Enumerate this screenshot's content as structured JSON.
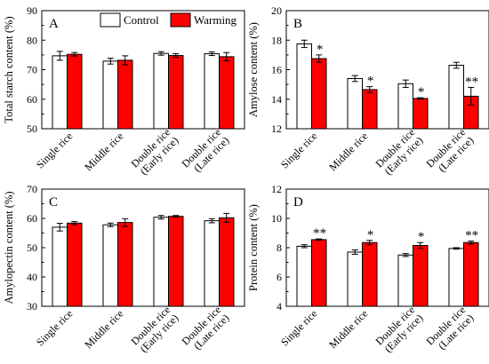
{
  "legend": {
    "entries": [
      {
        "name": "Control",
        "color": "#ffffff"
      },
      {
        "name": "Warming",
        "color": "#ff0000"
      }
    ],
    "placement": "top, inside panel A"
  },
  "colors": {
    "control_fill": "#ffffff",
    "warming_fill": "#ff0000",
    "stroke": "#000000"
  },
  "chart_data": [
    {
      "type": "bar",
      "panel": "A",
      "ylabel": "Total starch content (%)",
      "ylim": [
        50,
        90
      ],
      "yticks": [
        50,
        60,
        70,
        80,
        90
      ],
      "categories": [
        "Single rice",
        "Middle rice",
        "Double rice\n(Early rice)",
        "Double rice\n(Late rice)"
      ],
      "series": [
        {
          "name": "Control",
          "values": [
            74.7,
            72.9,
            75.5,
            75.4
          ],
          "errors": [
            1.5,
            1.0,
            0.6,
            0.6
          ]
        },
        {
          "name": "Warming",
          "values": [
            75.2,
            73.2,
            74.8,
            74.4
          ],
          "errors": [
            0.6,
            1.5,
            0.6,
            1.4
          ]
        }
      ],
      "significance": [
        "",
        "",
        "",
        ""
      ]
    },
    {
      "type": "bar",
      "panel": "B",
      "ylabel": "Amylose content (%)",
      "ylim": [
        12,
        20
      ],
      "yticks": [
        12,
        14,
        16,
        18,
        20
      ],
      "categories": [
        "Single rice",
        "Middle rice",
        "Double rice\n(Early rice)",
        "Double rice\n(Late rice)"
      ],
      "series": [
        {
          "name": "Control",
          "values": [
            17.75,
            15.4,
            15.05,
            16.3
          ],
          "errors": [
            0.25,
            0.2,
            0.25,
            0.2
          ]
        },
        {
          "name": "Warming",
          "values": [
            16.75,
            14.65,
            14.05,
            14.2
          ],
          "errors": [
            0.25,
            0.2,
            0.05,
            0.6
          ]
        }
      ],
      "significance": [
        "*",
        "*",
        "*",
        "**"
      ]
    },
    {
      "type": "bar",
      "panel": "C",
      "ylabel": "Amylopectin content (%)",
      "ylim": [
        30,
        70
      ],
      "yticks": [
        30,
        40,
        50,
        60,
        70
      ],
      "categories": [
        "Single rice",
        "Middle rice",
        "Double rice\n(Early rice)",
        "Double rice\n(Late rice)"
      ],
      "series": [
        {
          "name": "Control",
          "values": [
            57.0,
            57.8,
            60.4,
            59.2
          ],
          "errors": [
            1.3,
            0.6,
            0.6,
            0.7
          ]
        },
        {
          "name": "Warming",
          "values": [
            58.4,
            58.6,
            60.7,
            60.2
          ],
          "errors": [
            0.5,
            1.3,
            0.3,
            1.5
          ]
        }
      ],
      "significance": [
        "",
        "",
        "",
        ""
      ]
    },
    {
      "type": "bar",
      "panel": "D",
      "ylabel": "Protein content (%)",
      "ylim": [
        4,
        12
      ],
      "yticks": [
        4,
        6,
        8,
        10,
        12
      ],
      "categories": [
        "Single rice",
        "Middle rice",
        "Double rice\n(Early rice)",
        "Double rice\n(Late rice)"
      ],
      "series": [
        {
          "name": "Control",
          "values": [
            8.1,
            7.7,
            7.5,
            7.95
          ],
          "errors": [
            0.1,
            0.15,
            0.1,
            0.05
          ]
        },
        {
          "name": "Warming",
          "values": [
            8.55,
            8.35,
            8.15,
            8.35
          ],
          "errors": [
            0.05,
            0.15,
            0.2,
            0.1
          ]
        }
      ],
      "significance": [
        "**",
        "*",
        "*",
        "**"
      ]
    }
  ]
}
